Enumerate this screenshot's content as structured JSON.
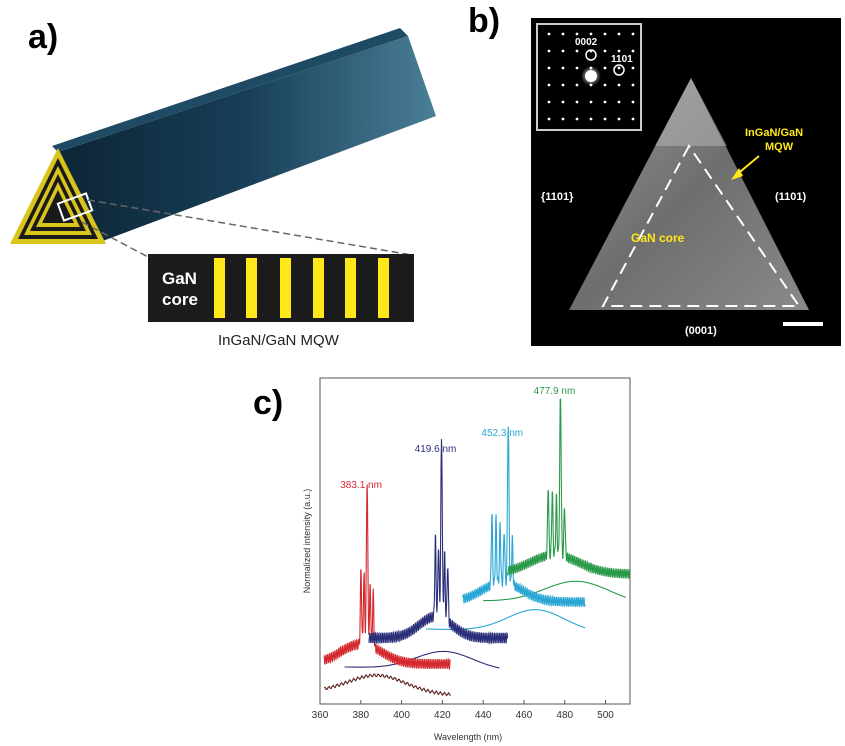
{
  "panels": {
    "a": {
      "label": "a)",
      "inset_core_label_line1": "GaN",
      "inset_core_label_line2": "core",
      "inset_caption": "InGaN/GaN MQW"
    },
    "b": {
      "label": "b)",
      "diffraction_spot_1": "0002",
      "diffraction_spot_2": "1̅0̅01",
      "diffraction_spot_2_plain": "1101",
      "mqw_label_line1": "InGaN/GaN",
      "mqw_label_line2": "MQW",
      "facet_left": "{1101}",
      "facet_right": "(1101)",
      "facet_bottom": "(0001)",
      "core_label": "GaN core"
    },
    "c": {
      "label": "c)"
    }
  },
  "colors": {
    "red": "#d42a2f",
    "blue": "#2b2f7a",
    "cyan": "#2aa6d6",
    "green": "#2a9a4a",
    "dark_red": "#5a1f1f",
    "yellow": "#ffe81a"
  },
  "chart_data": {
    "type": "line",
    "xlabel": "Wavelength (nm)",
    "ylabel": "Normalized intensity (a.u.)",
    "xlim": [
      360,
      512
    ],
    "x_ticks": [
      "360",
      "380",
      "400",
      "420",
      "440",
      "460",
      "480",
      "500"
    ],
    "series_annotations": [
      "383.1 nm",
      "419.6 nm",
      "452.3 nm",
      "477.9 nm"
    ],
    "peaks_nm": [
      383.1,
      419.6,
      452.3,
      477.9
    ],
    "series": [
      {
        "color": "red",
        "peak": 383.1
      },
      {
        "color": "blue",
        "peak": 419.6
      },
      {
        "color": "cyan",
        "peak": 452.3
      },
      {
        "color": "green",
        "peak": 477.9
      }
    ]
  }
}
